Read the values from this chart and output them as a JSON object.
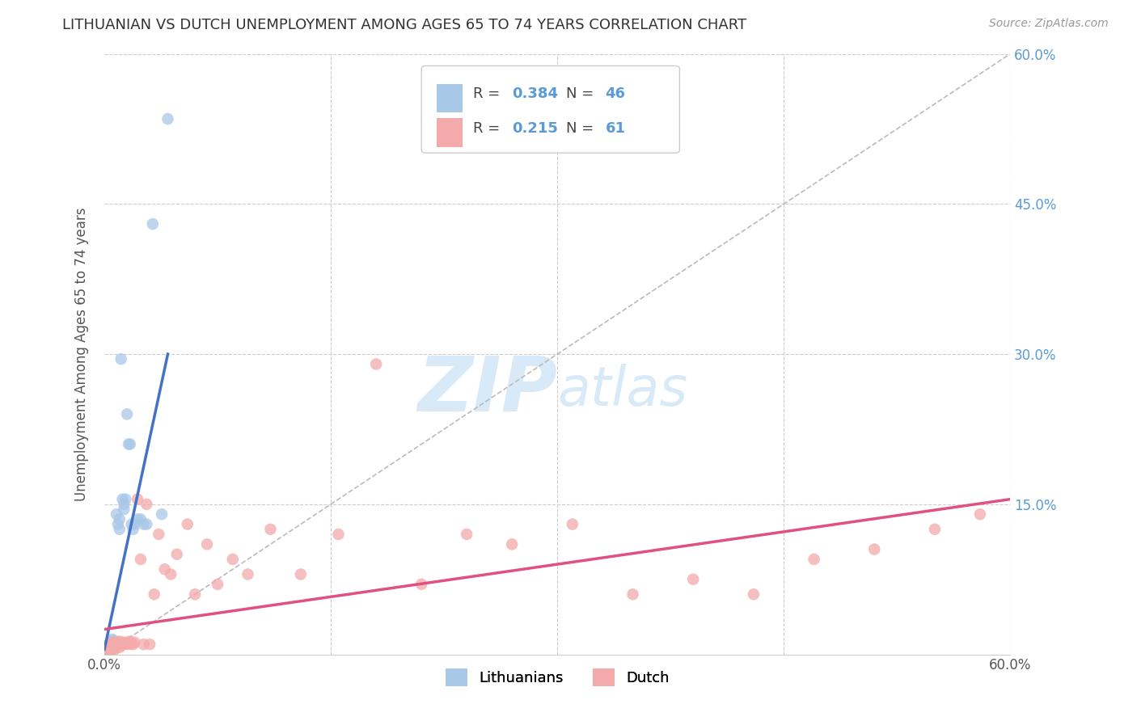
{
  "title": "LITHUANIAN VS DUTCH UNEMPLOYMENT AMONG AGES 65 TO 74 YEARS CORRELATION CHART",
  "source": "Source: ZipAtlas.com",
  "ylabel": "Unemployment Among Ages 65 to 74 years",
  "xlim": [
    0.0,
    0.6
  ],
  "ylim": [
    0.0,
    0.6
  ],
  "grid_color": "#cccccc",
  "background_color": "#ffffff",
  "legend_R1": "0.384",
  "legend_N1": "46",
  "legend_R2": "0.215",
  "legend_N2": "61",
  "color_lit": "#a8c8e8",
  "color_dutch": "#f4aaaa",
  "line_color_lit": "#4472c4",
  "line_color_dutch": "#e05080",
  "diag_color": "#bbbbbb",
  "lit_x": [
    0.001,
    0.001,
    0.002,
    0.002,
    0.002,
    0.003,
    0.003,
    0.003,
    0.003,
    0.004,
    0.004,
    0.004,
    0.005,
    0.005,
    0.005,
    0.005,
    0.006,
    0.006,
    0.006,
    0.006,
    0.007,
    0.007,
    0.008,
    0.008,
    0.009,
    0.009,
    0.01,
    0.01,
    0.011,
    0.012,
    0.013,
    0.013,
    0.014,
    0.015,
    0.016,
    0.017,
    0.018,
    0.019,
    0.02,
    0.022,
    0.024,
    0.026,
    0.028,
    0.032,
    0.038,
    0.042
  ],
  "lit_y": [
    0.003,
    0.005,
    0.004,
    0.006,
    0.008,
    0.004,
    0.006,
    0.008,
    0.01,
    0.005,
    0.007,
    0.01,
    0.005,
    0.008,
    0.01,
    0.015,
    0.006,
    0.009,
    0.012,
    0.014,
    0.008,
    0.011,
    0.01,
    0.14,
    0.13,
    0.012,
    0.125,
    0.135,
    0.295,
    0.155,
    0.15,
    0.145,
    0.155,
    0.24,
    0.21,
    0.21,
    0.13,
    0.125,
    0.13,
    0.135,
    0.135,
    0.13,
    0.13,
    0.43,
    0.14,
    0.535
  ],
  "dutch_x": [
    0.001,
    0.002,
    0.002,
    0.003,
    0.003,
    0.004,
    0.004,
    0.004,
    0.005,
    0.005,
    0.005,
    0.006,
    0.006,
    0.007,
    0.007,
    0.008,
    0.008,
    0.009,
    0.01,
    0.01,
    0.011,
    0.012,
    0.013,
    0.014,
    0.015,
    0.016,
    0.017,
    0.018,
    0.019,
    0.02,
    0.022,
    0.024,
    0.026,
    0.028,
    0.03,
    0.033,
    0.036,
    0.04,
    0.044,
    0.048,
    0.055,
    0.06,
    0.068,
    0.075,
    0.085,
    0.095,
    0.11,
    0.13,
    0.155,
    0.18,
    0.21,
    0.24,
    0.27,
    0.31,
    0.35,
    0.39,
    0.43,
    0.47,
    0.51,
    0.55,
    0.58
  ],
  "dutch_y": [
    0.004,
    0.003,
    0.006,
    0.005,
    0.008,
    0.004,
    0.007,
    0.01,
    0.005,
    0.008,
    0.012,
    0.006,
    0.009,
    0.005,
    0.01,
    0.008,
    0.012,
    0.01,
    0.007,
    0.013,
    0.009,
    0.012,
    0.01,
    0.012,
    0.011,
    0.01,
    0.013,
    0.011,
    0.01,
    0.012,
    0.155,
    0.095,
    0.01,
    0.15,
    0.01,
    0.06,
    0.12,
    0.085,
    0.08,
    0.1,
    0.13,
    0.06,
    0.11,
    0.07,
    0.095,
    0.08,
    0.125,
    0.08,
    0.12,
    0.29,
    0.07,
    0.12,
    0.11,
    0.13,
    0.06,
    0.075,
    0.06,
    0.095,
    0.105,
    0.125,
    0.14
  ],
  "lit_line_x0": 0.0,
  "lit_line_y0": 0.005,
  "lit_line_x1": 0.042,
  "lit_line_y1": 0.3,
  "dutch_line_x0": 0.0,
  "dutch_line_y0": 0.025,
  "dutch_line_x1": 0.6,
  "dutch_line_y1": 0.155
}
